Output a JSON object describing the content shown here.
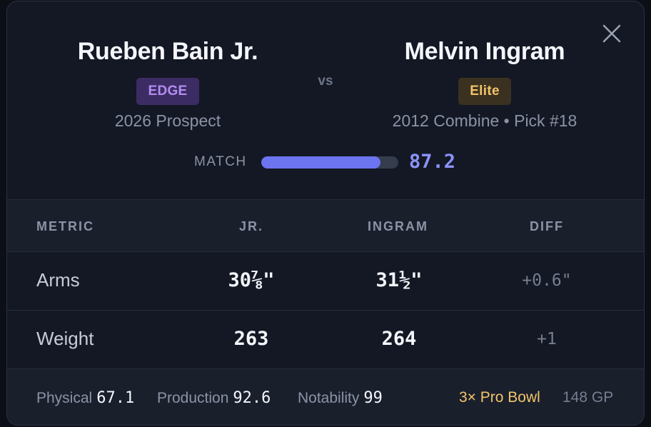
{
  "close_icon": "close-icon",
  "players": {
    "left": {
      "name": "Rueben Bain Jr.",
      "badge": "EDGE",
      "badge_color": "#b58cf2",
      "subtitle": "2026 Prospect"
    },
    "vs": "vs",
    "right": {
      "name": "Melvin Ingram",
      "badge": "Elite",
      "badge_color": "#f1c56a",
      "subtitle": "2012 Combine • Pick #18"
    }
  },
  "match": {
    "label": "MATCH",
    "value": "87.2",
    "fill_percent": 87.2,
    "accent": "#6d74f0"
  },
  "table": {
    "headers": {
      "metric": "METRIC",
      "left": "JR.",
      "right": "INGRAM",
      "diff": "DIFF"
    },
    "rows": [
      {
        "metric": "Arms",
        "left": "30⅞\"",
        "right": "31½\"",
        "diff": "+0.6\""
      },
      {
        "metric": "Weight",
        "left": "263",
        "right": "264",
        "diff": "+1"
      }
    ]
  },
  "footer": {
    "physical_label": "Physical",
    "physical_value": "67.1",
    "production_label": "Production",
    "production_value": "92.6",
    "notability_label": "Notability",
    "notability_value": "99",
    "pro_bowl": "3× Pro Bowl",
    "games": "148 GP",
    "pro_bowl_color": "#f1c56a"
  }
}
